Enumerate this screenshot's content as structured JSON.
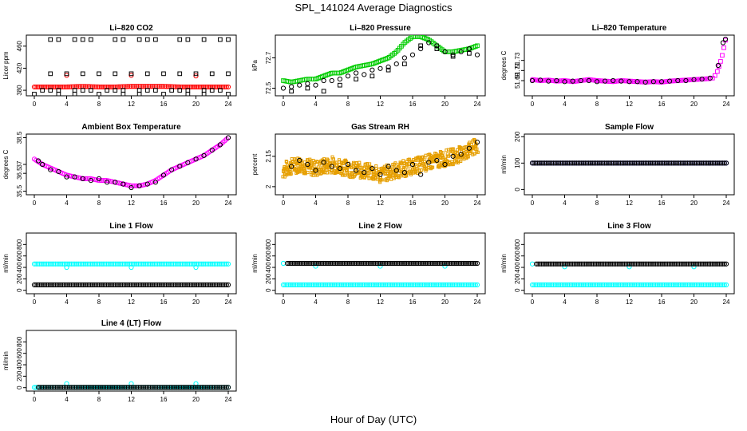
{
  "title": "SPL_141024  Average Diagnostics",
  "x_axis_title": "Hour of Day (UTC)",
  "colors": {
    "black": "#000000",
    "red": "#ff0000",
    "green": "#00cc00",
    "magenta": "#ff00ff",
    "orange": "#e69f00",
    "blue": "#0000cc",
    "cyan": "#00ffff"
  },
  "chart_data": [
    {
      "type": "scatter",
      "title": "Li–820 CO2",
      "ylabel": "Licor ppm",
      "xlim": [
        0,
        24
      ],
      "ylim": [
        370,
        480
      ],
      "x_ticks": [
        0,
        4,
        8,
        12,
        16,
        20,
        24
      ],
      "y_ticks": [
        380,
        420,
        460
      ],
      "series": [
        {
          "color": "red",
          "marker": "circle",
          "x_start": 0,
          "x_end": 24,
          "values": [
            386,
            386,
            386,
            387,
            386,
            386,
            387,
            387,
            387,
            386,
            386,
            386,
            386
          ]
        },
        {
          "color": "red",
          "marker": "circle",
          "x": [
            4,
            12,
            20
          ],
          "y": [
            407,
            407,
            406
          ]
        },
        {
          "color": "black",
          "marker": "square",
          "x": [
            2,
            3,
            5,
            6,
            7,
            10,
            11,
            13,
            14,
            15,
            18,
            19,
            21,
            23,
            24
          ],
          "y": [
            472,
            472,
            472,
            472,
            472,
            472,
            472,
            472,
            472,
            472,
            472,
            472,
            472,
            472,
            472
          ]
        },
        {
          "color": "black",
          "marker": "square",
          "x": [
            2,
            4,
            6,
            8,
            10,
            12,
            14,
            16,
            18,
            20,
            22,
            24
          ],
          "y": [
            410,
            410,
            410,
            410,
            410,
            410,
            410,
            410,
            410,
            410,
            410,
            410
          ]
        },
        {
          "color": "black",
          "marker": "square",
          "x": [
            1,
            2,
            3,
            5,
            6,
            7,
            9,
            10,
            11,
            13,
            14,
            15,
            17,
            18,
            19,
            21,
            22,
            23
          ],
          "y": [
            380,
            380,
            380,
            380,
            380,
            380,
            380,
            380,
            380,
            380,
            380,
            380,
            380,
            380,
            380,
            380,
            380,
            380
          ]
        },
        {
          "color": "black",
          "marker": "square",
          "x": [
            0,
            3,
            5,
            8,
            11,
            13,
            16,
            19,
            21,
            24
          ],
          "y": [
            373,
            373,
            373,
            373,
            373,
            373,
            373,
            373,
            373,
            373
          ]
        }
      ]
    },
    {
      "type": "scatter",
      "title": "Li–820 Pressure",
      "ylabel": "kPa",
      "xlim": [
        0,
        24
      ],
      "ylim": [
        72.45,
        72.85
      ],
      "x_ticks": [
        0,
        4,
        8,
        12,
        16,
        20,
        24
      ],
      "y_ticks": [
        72.5,
        72.7
      ],
      "series": [
        {
          "color": "green",
          "marker": "square",
          "x_start": 0,
          "x_end": 24,
          "values": [
            72.55,
            72.54,
            72.55,
            72.56,
            72.56,
            72.58,
            72.6,
            72.6,
            72.62,
            72.64,
            72.65,
            72.66,
            72.68,
            72.7,
            72.74,
            72.8,
            72.84,
            72.84,
            72.82,
            72.78,
            72.74,
            72.74,
            72.75,
            72.76,
            72.78
          ]
        },
        {
          "color": "black",
          "marker": "circle",
          "x": [
            0,
            1,
            2,
            3,
            4,
            5,
            6,
            7,
            8,
            9,
            10,
            11,
            12,
            13,
            14,
            15,
            16,
            17,
            18,
            19,
            20,
            21,
            22,
            23,
            24
          ],
          "y": [
            72.5,
            72.51,
            72.52,
            72.53,
            72.52,
            72.55,
            72.55,
            72.56,
            72.58,
            72.6,
            72.59,
            72.62,
            72.63,
            72.64,
            72.66,
            72.7,
            72.72,
            72.76,
            72.8,
            72.78,
            72.74,
            72.72,
            72.74,
            72.76,
            72.72
          ]
        },
        {
          "color": "black",
          "marker": "square",
          "x": [
            1,
            3,
            5,
            7,
            9,
            11,
            13,
            15,
            17,
            19,
            21,
            23
          ],
          "y": [
            72.48,
            72.5,
            72.48,
            72.52,
            72.56,
            72.58,
            72.62,
            72.66,
            72.78,
            72.76,
            72.71,
            72.73
          ]
        }
      ]
    },
    {
      "type": "scatter",
      "title": "Li–820 Temperature",
      "ylabel": "degrees C",
      "xlim": [
        0,
        24
      ],
      "ylim": [
        51.66,
        51.78
      ],
      "x_ticks": [
        0,
        4,
        8,
        12,
        16,
        20,
        24
      ],
      "y_ticks": [
        51.69,
        51.71,
        51.73
      ],
      "series": [
        {
          "color": "magenta",
          "marker": "circle",
          "x_start": 0,
          "x_end": 22,
          "values": [
            51.692,
            51.69,
            51.691,
            51.689,
            51.69,
            51.688,
            51.69,
            51.692,
            51.69,
            51.689,
            51.688,
            51.69,
            51.689,
            51.688,
            51.687,
            51.688,
            51.687,
            51.689,
            51.69,
            51.691,
            51.692,
            51.693,
            51.694
          ]
        },
        {
          "color": "magenta",
          "marker": "square",
          "x": [
            22.3,
            22.6,
            22.9,
            23.1,
            23.3,
            23.5,
            23.7,
            23.9
          ],
          "y": [
            51.695,
            51.7,
            51.708,
            51.718,
            51.728,
            51.74,
            51.755,
            51.77
          ]
        },
        {
          "color": "black",
          "marker": "circle",
          "x": [
            0,
            1,
            2,
            3,
            4,
            5,
            6,
            7,
            8,
            9,
            10,
            11,
            12,
            13,
            14,
            15,
            16,
            17,
            18,
            19,
            20,
            21,
            22,
            23,
            23.6,
            23.9
          ],
          "y": [
            51.69,
            51.691,
            51.689,
            51.69,
            51.688,
            51.689,
            51.69,
            51.69,
            51.688,
            51.689,
            51.69,
            51.689,
            51.688,
            51.688,
            51.687,
            51.688,
            51.688,
            51.689,
            51.69,
            51.69,
            51.692,
            51.693,
            51.695,
            51.72,
            51.765,
            51.772
          ]
        }
      ]
    },
    {
      "type": "scatter",
      "title": "Ambient Box Temperature",
      "ylabel": "degrees C",
      "xlim": [
        0,
        24
      ],
      "ylim": [
        35.3,
        38.7
      ],
      "x_ticks": [
        0,
        4,
        8,
        12,
        16,
        20,
        24
      ],
      "y_ticks": [
        35.5,
        36.5,
        37.0,
        38.5
      ],
      "series": [
        {
          "color": "magenta",
          "marker": "circle",
          "x_start": 0,
          "x_end": 24,
          "values": [
            37.3,
            37.0,
            36.8,
            36.6,
            36.4,
            36.3,
            36.2,
            36.2,
            36.1,
            36.1,
            36.0,
            35.9,
            35.8,
            35.8,
            35.9,
            36.1,
            36.4,
            36.7,
            36.9,
            37.1,
            37.3,
            37.5,
            37.8,
            38.1,
            38.5
          ]
        },
        {
          "color": "black",
          "marker": "circle",
          "x": [
            0.5,
            1,
            2,
            3,
            4,
            5,
            6,
            7,
            8,
            9,
            10,
            11,
            12,
            13,
            14,
            15,
            16,
            17,
            18,
            19,
            20,
            21,
            22,
            23,
            24
          ],
          "y": [
            37.2,
            37.0,
            36.7,
            36.6,
            36.3,
            36.3,
            36.2,
            36.1,
            36.2,
            36.0,
            36.0,
            35.9,
            35.7,
            35.8,
            35.9,
            36.0,
            36.4,
            36.7,
            36.9,
            37.1,
            37.3,
            37.5,
            37.8,
            38.1,
            38.5
          ]
        }
      ]
    },
    {
      "type": "scatter",
      "title": "Gas Stream RH",
      "ylabel": "percent",
      "xlim": [
        0,
        24
      ],
      "ylim": [
        1.96,
        2.26
      ],
      "x_ticks": [
        0,
        4,
        8,
        12,
        16,
        20,
        24
      ],
      "y_ticks": [
        2.0,
        2.15
      ],
      "series": [
        {
          "color": "orange",
          "marker": "band",
          "x_start": 0,
          "x_end": 24,
          "values": [
            2.08,
            2.1,
            2.11,
            2.1,
            2.09,
            2.1,
            2.11,
            2.1,
            2.09,
            2.08,
            2.08,
            2.07,
            2.06,
            2.07,
            2.08,
            2.09,
            2.1,
            2.11,
            2.12,
            2.13,
            2.14,
            2.15,
            2.16,
            2.18,
            2.2
          ],
          "spread": 0.04
        },
        {
          "color": "black",
          "marker": "circle",
          "x": [
            1,
            2,
            3,
            4,
            5,
            6,
            7,
            8,
            9,
            10,
            11,
            12,
            13,
            14,
            15,
            16,
            17,
            18,
            19,
            20,
            21,
            22,
            23,
            24
          ],
          "y": [
            2.1,
            2.13,
            2.11,
            2.08,
            2.12,
            2.1,
            2.09,
            2.11,
            2.08,
            2.07,
            2.09,
            2.06,
            2.1,
            2.08,
            2.07,
            2.11,
            2.06,
            2.12,
            2.13,
            2.11,
            2.15,
            2.16,
            2.19,
            2.22
          ]
        }
      ]
    },
    {
      "type": "scatter",
      "title": "Sample Flow",
      "ylabel": "ml/min",
      "xlim": [
        0,
        24
      ],
      "ylim": [
        -20,
        210
      ],
      "x_ticks": [
        0,
        4,
        8,
        12,
        16,
        20,
        24
      ],
      "y_ticks": [
        0,
        100,
        200
      ],
      "series": [
        {
          "color": "blue",
          "marker": "circle",
          "x_start": 0,
          "x_end": 24,
          "values": [
            100,
            100,
            100,
            100,
            100,
            100,
            100,
            100,
            100,
            100,
            100,
            100,
            100
          ]
        },
        {
          "color": "black",
          "marker": "circle",
          "x_start": 0,
          "x_end": 24,
          "values": [
            100,
            100,
            100,
            100,
            100,
            100,
            100,
            100,
            100,
            100,
            100,
            100,
            100
          ]
        }
      ]
    },
    {
      "type": "scatter",
      "title": "Line 1 Flow",
      "ylabel": "ml/min",
      "xlim": [
        0,
        24
      ],
      "ylim": [
        -60,
        1000
      ],
      "x_ticks": [
        0,
        4,
        8,
        12,
        16,
        20,
        24
      ],
      "y_ticks": [
        0,
        200,
        400,
        600,
        800
      ],
      "series": [
        {
          "color": "cyan",
          "marker": "circle",
          "x_start": 0,
          "x_end": 24,
          "values": [
            460,
            460,
            460,
            460,
            460,
            460,
            460,
            460,
            460,
            460,
            460,
            460,
            460
          ]
        },
        {
          "color": "cyan",
          "marker": "circle",
          "x": [
            4,
            12,
            20
          ],
          "y": [
            400,
            400,
            400
          ]
        },
        {
          "color": "black",
          "marker": "circle",
          "x_start": 0,
          "x_end": 24,
          "values": [
            95,
            95,
            95,
            95,
            95,
            95,
            95,
            95,
            95,
            95,
            95,
            95,
            95
          ]
        }
      ]
    },
    {
      "type": "scatter",
      "title": "Line 2 Flow",
      "ylabel": "ml/min",
      "xlim": [
        0,
        24
      ],
      "ylim": [
        -60,
        1000
      ],
      "x_ticks": [
        0,
        4,
        8,
        12,
        16,
        20,
        24
      ],
      "y_ticks": [
        0,
        200,
        400,
        600,
        800
      ],
      "series": [
        {
          "color": "cyan",
          "marker": "circle",
          "x_start": 0,
          "x_end": 24,
          "values": [
            95,
            95,
            95,
            95,
            95,
            95,
            95,
            95,
            95,
            95,
            95,
            95,
            95
          ]
        },
        {
          "color": "cyan",
          "marker": "circle",
          "x": [
            0,
            4,
            12,
            20
          ],
          "y": [
            470,
            420,
            420,
            420
          ]
        },
        {
          "color": "black",
          "marker": "circle",
          "x_start": 0.5,
          "x_end": 24,
          "values": [
            470,
            470,
            470,
            470,
            470,
            470,
            470,
            470,
            470,
            470,
            470,
            470,
            470
          ]
        }
      ]
    },
    {
      "type": "scatter",
      "title": "Line 3 Flow",
      "ylabel": "ml/min",
      "xlim": [
        0,
        24
      ],
      "ylim": [
        -60,
        1000
      ],
      "x_ticks": [
        0,
        4,
        8,
        12,
        16,
        20,
        24
      ],
      "y_ticks": [
        0,
        200,
        400,
        600,
        800
      ],
      "series": [
        {
          "color": "cyan",
          "marker": "circle",
          "x_start": 0,
          "x_end": 24,
          "values": [
            95,
            95,
            95,
            95,
            95,
            95,
            95,
            95,
            95,
            95,
            95,
            95,
            95
          ]
        },
        {
          "color": "cyan",
          "marker": "circle",
          "x": [
            0,
            4,
            12,
            20
          ],
          "y": [
            460,
            410,
            410,
            410
          ]
        },
        {
          "color": "black",
          "marker": "circle",
          "x_start": 0.5,
          "x_end": 24,
          "values": [
            460,
            460,
            460,
            460,
            460,
            460,
            460,
            460,
            460,
            460,
            460,
            460,
            460
          ]
        }
      ]
    },
    {
      "type": "scatter",
      "title": "Line 4 (LT) Flow",
      "ylabel": "ml/min",
      "xlim": [
        0,
        24
      ],
      "ylim": [
        -60,
        1000
      ],
      "x_ticks": [
        0,
        4,
        8,
        12,
        16,
        20,
        24
      ],
      "y_ticks": [
        0,
        200,
        400,
        600,
        800
      ],
      "series": [
        {
          "color": "cyan",
          "marker": "circle",
          "x_start": 0,
          "x_end": 24,
          "values": [
            5,
            5,
            5,
            5,
            5,
            5,
            5,
            5,
            5,
            5,
            5,
            5,
            5
          ]
        },
        {
          "color": "cyan",
          "marker": "circle",
          "x": [
            4,
            12,
            20
          ],
          "y": [
            70,
            70,
            70
          ]
        },
        {
          "color": "black",
          "marker": "circle",
          "x_start": 0.5,
          "x_end": 24,
          "values": [
            5,
            5,
            5,
            5,
            5,
            5,
            5,
            5,
            5,
            5,
            5,
            5,
            5
          ]
        }
      ]
    }
  ]
}
